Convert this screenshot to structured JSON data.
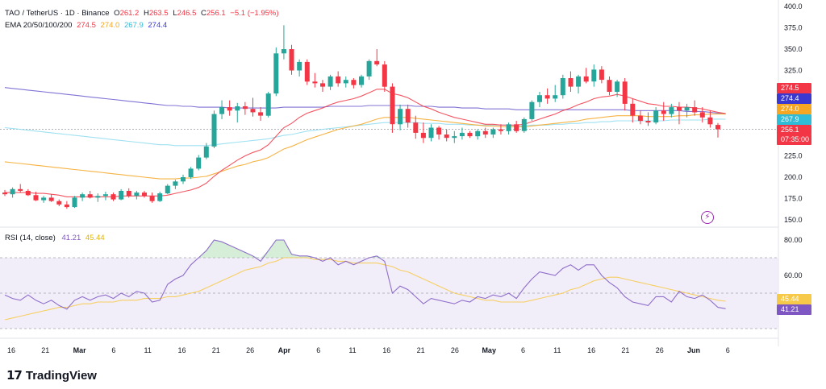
{
  "header": {
    "symbol": "TAO / TetherUS · 1D · Binance",
    "open_label": "O",
    "open": "261.2",
    "high_label": "H",
    "high": "263.5",
    "low_label": "L",
    "low": "246.5",
    "close_label": "C",
    "close": "256.1",
    "change": "−5.1 (−1.95%)",
    "ema_label": "EMA 20/50/100/200",
    "ema20": "274.5",
    "ema50": "274.0",
    "ema100": "267.9",
    "ema200": "274.4",
    "rsi_label": "RSI (14, close)",
    "rsi_value": "41.21",
    "rsi_ma_value": "45.44"
  },
  "brand": {
    "name": "TradingView",
    "mark": "17"
  },
  "colors": {
    "up": "#26a69a",
    "down": "#f23645",
    "ema20": "#f23645",
    "ema50": "#f5a623",
    "ema100": "#8fdcf0",
    "ema200": "#6a5acd",
    "rsi": "#7e57c2",
    "rsi_ma": "#f7c948",
    "rsi_band": "#ede7f6"
  },
  "price_axis": {
    "ticks": [
      "400.0",
      "375.0",
      "350.0",
      "325.0",
      "300.0",
      "275.0",
      "250.0",
      "225.0",
      "200.0",
      "175.0",
      "150.0"
    ]
  },
  "rsi_axis": {
    "ticks": [
      "80.00",
      "60.00"
    ]
  },
  "price_badges": [
    {
      "text": "274.5",
      "color": "#f23645",
      "value": 274.5
    },
    {
      "text": "274.4",
      "color": "#3b38d0",
      "value": 274.4
    },
    {
      "text": "274.0",
      "color": "#f5a623",
      "value": 274.0
    },
    {
      "text": "267.9",
      "color": "#2fbcd6",
      "value": 267.9
    },
    {
      "text": "256.1",
      "color": "#f23645",
      "value": 256.1
    },
    {
      "text": "07:35:00",
      "color": "#f23645",
      "value": null
    }
  ],
  "rsi_badges": [
    {
      "text": "45.44",
      "color": "#f7c948",
      "value": 45.44
    },
    {
      "text": "41.21",
      "color": "#7e57c2",
      "value": 41.21
    }
  ],
  "time_axis": {
    "labels": [
      "16",
      "21",
      "Mar",
      "6",
      "11",
      "16",
      "21",
      "26",
      "Apr",
      "6",
      "11",
      "16",
      "21",
      "26",
      "May",
      "6",
      "11",
      "16",
      "21",
      "26",
      "Jun",
      "6"
    ]
  },
  "chart_data": {
    "type": "candlestick",
    "title": "TAO / TetherUS · 1D · Binance",
    "ylim": [
      140,
      405
    ],
    "candles": [
      [
        182,
        185,
        178,
        180
      ],
      [
        180,
        188,
        176,
        186
      ],
      [
        186,
        192,
        182,
        184
      ],
      [
        184,
        186,
        178,
        179
      ],
      [
        179,
        183,
        172,
        173
      ],
      [
        173,
        178,
        170,
        176
      ],
      [
        176,
        180,
        171,
        172
      ],
      [
        172,
        174,
        166,
        168
      ],
      [
        168,
        172,
        163,
        165
      ],
      [
        165,
        178,
        164,
        176
      ],
      [
        176,
        182,
        172,
        180
      ],
      [
        180,
        184,
        175,
        176
      ],
      [
        176,
        181,
        171,
        178
      ],
      [
        178,
        183,
        173,
        180
      ],
      [
        180,
        182,
        172,
        174
      ],
      [
        174,
        186,
        173,
        184
      ],
      [
        184,
        187,
        176,
        178
      ],
      [
        178,
        184,
        174,
        182
      ],
      [
        182,
        184,
        176,
        178
      ],
      [
        178,
        182,
        170,
        172
      ],
      [
        172,
        183,
        171,
        181
      ],
      [
        181,
        192,
        180,
        190
      ],
      [
        190,
        197,
        186,
        195
      ],
      [
        195,
        203,
        192,
        200
      ],
      [
        200,
        212,
        198,
        210
      ],
      [
        210,
        226,
        208,
        223
      ],
      [
        223,
        240,
        221,
        236
      ],
      [
        236,
        278,
        234,
        274
      ],
      [
        274,
        290,
        268,
        282
      ],
      [
        282,
        290,
        272,
        278
      ],
      [
        278,
        287,
        264,
        283
      ],
      [
        283,
        288,
        273,
        280
      ],
      [
        280,
        293,
        271,
        276
      ],
      [
        276,
        282,
        266,
        272
      ],
      [
        272,
        300,
        270,
        298
      ],
      [
        298,
        352,
        295,
        345
      ],
      [
        345,
        378,
        338,
        350
      ],
      [
        350,
        355,
        320,
        325
      ],
      [
        325,
        338,
        318,
        335
      ],
      [
        335,
        338,
        308,
        312
      ],
      [
        312,
        322,
        305,
        310
      ],
      [
        310,
        314,
        300,
        306
      ],
      [
        306,
        320,
        302,
        318
      ],
      [
        318,
        324,
        306,
        310
      ],
      [
        310,
        318,
        305,
        314
      ],
      [
        314,
        316,
        304,
        308
      ],
      [
        308,
        320,
        305,
        318
      ],
      [
        318,
        338,
        314,
        336
      ],
      [
        336,
        350,
        330,
        332
      ],
      [
        332,
        336,
        300,
        306
      ],
      [
        306,
        310,
        252,
        262
      ],
      [
        262,
        285,
        255,
        280
      ],
      [
        280,
        285,
        258,
        264
      ],
      [
        264,
        272,
        245,
        252
      ],
      [
        252,
        264,
        240,
        246
      ],
      [
        246,
        262,
        242,
        258
      ],
      [
        258,
        260,
        244,
        250
      ],
      [
        250,
        256,
        242,
        246
      ],
      [
        246,
        254,
        240,
        248
      ],
      [
        248,
        258,
        244,
        252
      ],
      [
        252,
        254,
        246,
        248
      ],
      [
        248,
        256,
        244,
        254
      ],
      [
        254,
        258,
        246,
        250
      ],
      [
        250,
        258,
        246,
        256
      ],
      [
        256,
        262,
        250,
        254
      ],
      [
        254,
        264,
        250,
        262
      ],
      [
        262,
        266,
        252,
        254
      ],
      [
        254,
        270,
        252,
        268
      ],
      [
        268,
        290,
        266,
        288
      ],
      [
        288,
        300,
        282,
        296
      ],
      [
        296,
        304,
        286,
        292
      ],
      [
        292,
        308,
        288,
        296
      ],
      [
        296,
        320,
        292,
        316
      ],
      [
        316,
        324,
        300,
        306
      ],
      [
        306,
        320,
        298,
        318
      ],
      [
        318,
        328,
        310,
        312
      ],
      [
        312,
        332,
        306,
        326
      ],
      [
        326,
        330,
        310,
        314
      ],
      [
        314,
        318,
        296,
        300
      ],
      [
        300,
        314,
        294,
        312
      ],
      [
        312,
        316,
        278,
        286
      ],
      [
        286,
        292,
        264,
        272
      ],
      [
        272,
        278,
        262,
        266
      ],
      [
        266,
        276,
        260,
        264
      ],
      [
        264,
        282,
        262,
        278
      ],
      [
        278,
        288,
        266,
        274
      ],
      [
        274,
        286,
        270,
        282
      ],
      [
        282,
        288,
        262,
        278
      ],
      [
        278,
        286,
        270,
        282
      ],
      [
        282,
        290,
        272,
        276
      ],
      [
        276,
        282,
        264,
        270
      ],
      [
        270,
        278,
        258,
        262
      ],
      [
        261.2,
        263.5,
        246.5,
        256.1
      ]
    ],
    "ema20_series": [
      182,
      182,
      182,
      182,
      181,
      181,
      180,
      179,
      177,
      177,
      177,
      177,
      177,
      177,
      177,
      178,
      178,
      178,
      178,
      178,
      178,
      179,
      181,
      183,
      185,
      188,
      193,
      201,
      208,
      214,
      220,
      225,
      229,
      232,
      238,
      248,
      258,
      263,
      270,
      275,
      278,
      281,
      285,
      288,
      290,
      292,
      295,
      299,
      303,
      303,
      298,
      296,
      293,
      288,
      283,
      280,
      276,
      273,
      270,
      268,
      266,
      264,
      262,
      262,
      261,
      261,
      261,
      262,
      265,
      268,
      271,
      274,
      278,
      281,
      285,
      288,
      292,
      294,
      295,
      297,
      295,
      292,
      289,
      286,
      285,
      283,
      283,
      282,
      282,
      281,
      280,
      278,
      276,
      274.5
    ],
    "ema50_series": [
      218,
      217,
      216,
      215,
      214,
      213,
      212,
      211,
      210,
      209,
      208,
      207,
      206,
      205,
      204,
      203,
      202,
      201,
      200,
      199,
      198,
      198,
      198,
      199,
      199,
      200,
      201,
      204,
      207,
      210,
      213,
      215,
      218,
      220,
      223,
      228,
      233,
      236,
      240,
      244,
      247,
      250,
      253,
      256,
      258,
      260,
      262,
      265,
      268,
      270,
      270,
      270,
      270,
      269,
      268,
      267,
      266,
      265,
      264,
      263,
      262,
      261,
      260,
      260,
      259,
      259,
      259,
      259,
      260,
      261,
      262,
      263,
      264,
      265,
      266,
      268,
      269,
      270,
      271,
      272,
      272,
      272,
      272,
      271,
      271,
      271,
      271,
      272,
      272,
      273,
      273,
      274,
      274,
      274.0
    ],
    "ema100_series": [
      258,
      257,
      256,
      255,
      254,
      253,
      252,
      251,
      250,
      249,
      248,
      247,
      246,
      245,
      244,
      243,
      242,
      241,
      240,
      239,
      238,
      238,
      237,
      237,
      237,
      237,
      237,
      238,
      239,
      240,
      241,
      242,
      243,
      244,
      245,
      247,
      249,
      250,
      252,
      254,
      255,
      256,
      257,
      258,
      259,
      260,
      261,
      262,
      263,
      264,
      264,
      264,
      264,
      264,
      263,
      263,
      263,
      262,
      262,
      262,
      261,
      261,
      261,
      261,
      261,
      261,
      260,
      260,
      261,
      261,
      261,
      262,
      262,
      263,
      263,
      264,
      264,
      265,
      265,
      266,
      266,
      266,
      266,
      266,
      266,
      266,
      267,
      267,
      267,
      267,
      267,
      268,
      268,
      267.9
    ],
    "ema200_series": [
      305,
      304,
      303,
      302,
      301,
      300,
      299,
      298,
      297,
      296,
      295,
      294,
      293,
      292,
      291,
      290,
      289,
      288,
      287,
      286,
      285,
      284,
      284,
      283,
      283,
      282,
      282,
      282,
      282,
      281,
      281,
      281,
      281,
      281,
      281,
      281,
      282,
      282,
      282,
      282,
      282,
      282,
      283,
      283,
      283,
      283,
      283,
      284,
      284,
      284,
      284,
      284,
      284,
      283,
      283,
      283,
      282,
      282,
      282,
      281,
      281,
      281,
      280,
      280,
      280,
      280,
      279,
      279,
      279,
      279,
      279,
      279,
      279,
      279,
      279,
      279,
      279,
      279,
      279,
      279,
      279,
      278,
      278,
      278,
      278,
      278,
      278,
      278,
      277,
      277,
      277,
      276,
      275,
      274.4
    ],
    "rsi_series": [
      49,
      47,
      46,
      49,
      46,
      44,
      46,
      43,
      41,
      46,
      48,
      46,
      48,
      49,
      47,
      50,
      48,
      51,
      50,
      45,
      46,
      55,
      58,
      60,
      66,
      70,
      74,
      80,
      79,
      77,
      75,
      73,
      71,
      68,
      74,
      80,
      80,
      72,
      71,
      71,
      70,
      68,
      70,
      66,
      68,
      66,
      68,
      70,
      71,
      68,
      50,
      54,
      52,
      48,
      44,
      47,
      46,
      45,
      44,
      46,
      45,
      48,
      47,
      49,
      48,
      50,
      47,
      53,
      58,
      62,
      61,
      60,
      64,
      66,
      63,
      66,
      66,
      60,
      56,
      53,
      48,
      45,
      44,
      43,
      48,
      48,
      45,
      51,
      48,
      47,
      49,
      46,
      42,
      41.21
    ],
    "rsi_ma_series": [
      35,
      36,
      37,
      38,
      39,
      40,
      41,
      42,
      42,
      43,
      44,
      44,
      45,
      45,
      45,
      46,
      46,
      46,
      47,
      47,
      47,
      48,
      48,
      49,
      50,
      51,
      53,
      55,
      57,
      59,
      61,
      63,
      64,
      65,
      67,
      68,
      70,
      70,
      70,
      70,
      69,
      69,
      69,
      68,
      68,
      67,
      67,
      67,
      67,
      66,
      65,
      63,
      62,
      60,
      58,
      56,
      54,
      52,
      50,
      49,
      48,
      47,
      46,
      46,
      45,
      45,
      45,
      45,
      46,
      47,
      48,
      49,
      50,
      52,
      53,
      55,
      57,
      58,
      59,
      59,
      58,
      57,
      56,
      55,
      54,
      53,
      52,
      51,
      50,
      49,
      48,
      47,
      46,
      45.44
    ],
    "rsi_ylim": [
      20,
      86
    ],
    "rsi_bands": [
      70,
      50,
      30
    ]
  }
}
